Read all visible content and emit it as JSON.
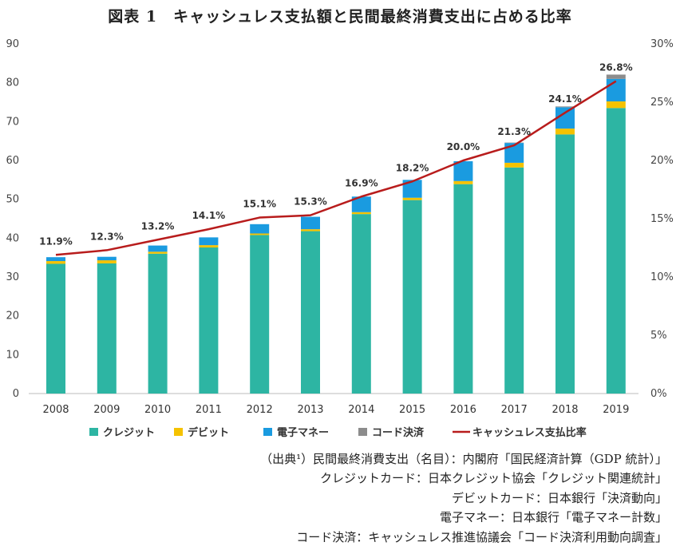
{
  "chart_data": {
    "type": "bar",
    "stacked": true,
    "title": "図表 1　キャッシュレス支払額と民間最終消費支出に占める比率",
    "categories": [
      "2008",
      "2009",
      "2010",
      "2011",
      "2012",
      "2013",
      "2014",
      "2015",
      "2016",
      "2017",
      "2018",
      "2019"
    ],
    "series": [
      {
        "name": "クレジット",
        "color": "#2db5a3",
        "values": [
          33.4,
          33.5,
          36.0,
          37.6,
          40.8,
          41.8,
          46.2,
          49.8,
          53.9,
          58.2,
          66.7,
          73.5
        ]
      },
      {
        "name": "デビット",
        "color": "#f5c200",
        "values": [
          0.7,
          0.8,
          0.5,
          0.6,
          0.4,
          0.5,
          0.5,
          0.6,
          0.8,
          1.2,
          1.5,
          1.7
        ]
      },
      {
        "name": "電子マネー",
        "color": "#1a9be0",
        "values": [
          1.0,
          0.9,
          1.6,
          2.0,
          2.4,
          3.2,
          4.0,
          4.6,
          5.1,
          5.1,
          5.5,
          5.8
        ]
      },
      {
        "name": "コード決済",
        "color": "#8c8c8c",
        "values": [
          0,
          0,
          0,
          0,
          0,
          0,
          0,
          0,
          0,
          0.1,
          0.2,
          1.1
        ]
      }
    ],
    "line_series": {
      "name": "キャッシュレス支払比率",
      "color": "#b81c1c",
      "values": [
        11.9,
        12.3,
        13.2,
        14.1,
        15.1,
        15.3,
        16.9,
        18.2,
        20.0,
        21.3,
        24.1,
        26.8
      ],
      "labels": [
        "11.9%",
        "12.3%",
        "13.2%",
        "14.1%",
        "15.1%",
        "15.3%",
        "16.9%",
        "18.2%",
        "20.0%",
        "21.3%",
        "24.1%",
        "26.8%"
      ]
    },
    "y_left": {
      "min": 0,
      "max": 90,
      "ticks": [
        0,
        10,
        20,
        30,
        40,
        50,
        60,
        70,
        80,
        90
      ]
    },
    "y_right": {
      "min": 0,
      "max": 30,
      "ticks": [
        "0%",
        "5%",
        "10%",
        "15%",
        "20%",
        "25%",
        "30%"
      ],
      "values": [
        0,
        5,
        10,
        15,
        20,
        25,
        30
      ]
    },
    "legend_position": "bottom"
  },
  "sources": [
    "（出典¹）民間最終消費支出（名目）：内閣府「国民経済計算（GDP 統計）」",
    "クレジットカード：日本クレジット協会「クレジット関連統計」",
    "デビットカード：日本銀行「決済動向」",
    "電子マネー：日本銀行「電子マネー計数」",
    "コード決済：キャッシュレス推進協議会「コード決済利用動向調査」"
  ]
}
